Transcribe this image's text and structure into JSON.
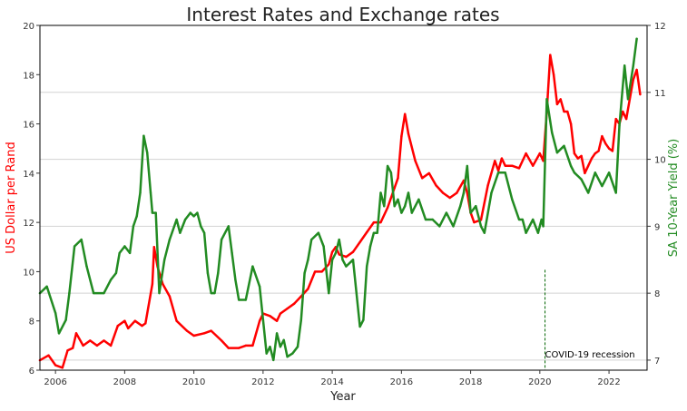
{
  "chart_data": {
    "type": "line",
    "title": "Interest Rates and Exchange rates",
    "xlabel": "Year",
    "ylabel_left": "US Dollar per Rand",
    "ylabel_right": "SA 10-Year Yield (%)",
    "xlim": [
      2005.55,
      2023.1
    ],
    "ylim_left": [
      6,
      20
    ],
    "ylim_right": [
      6.85,
      12
    ],
    "x_ticks": [
      2006,
      2008,
      2010,
      2012,
      2014,
      2016,
      2018,
      2020,
      2022
    ],
    "y_left_ticks": [
      6,
      8,
      10,
      12,
      14,
      16,
      18,
      20
    ],
    "y_right_ticks": [
      7,
      8,
      9,
      10,
      11,
      12
    ],
    "grid": "horizontal gridlines from right axis",
    "colors": {
      "exchange": "#ff0000",
      "yield": "#228b22",
      "annotation": "#006400",
      "grid": "#d3d3d3",
      "text": "#333333"
    },
    "annotation": {
      "label": "COVID-19 recession",
      "x": 2020.15,
      "y_right_top": 8.35
    },
    "series": [
      {
        "name": "US Dollar per Rand",
        "axis": "left",
        "x": [
          2005.55,
          2005.8,
          2006.0,
          2006.2,
          2006.35,
          2006.5,
          2006.6,
          2006.8,
          2007.0,
          2007.2,
          2007.4,
          2007.6,
          2007.8,
          2008.0,
          2008.1,
          2008.3,
          2008.5,
          2008.6,
          2008.8,
          2008.85,
          2008.95,
          2009.1,
          2009.3,
          2009.5,
          2009.8,
          2010.0,
          2010.3,
          2010.5,
          2010.8,
          2011.0,
          2011.3,
          2011.5,
          2011.7,
          2011.9,
          2012.0,
          2012.2,
          2012.4,
          2012.5,
          2012.7,
          2012.9,
          2013.1,
          2013.3,
          2013.5,
          2013.7,
          2013.9,
          2014.0,
          2014.1,
          2014.2,
          2014.4,
          2014.6,
          2014.8,
          2015.0,
          2015.2,
          2015.4,
          2015.6,
          2015.8,
          2015.9,
          2016.0,
          2016.1,
          2016.2,
          2016.4,
          2016.6,
          2016.8,
          2017.0,
          2017.2,
          2017.4,
          2017.6,
          2017.8,
          2017.9,
          2018.0,
          2018.1,
          2018.3,
          2018.5,
          2018.7,
          2018.8,
          2018.9,
          2019.0,
          2019.2,
          2019.4,
          2019.6,
          2019.8,
          2020.0,
          2020.1,
          2020.2,
          2020.3,
          2020.4,
          2020.5,
          2020.6,
          2020.7,
          2020.8,
          2020.9,
          2021.0,
          2021.1,
          2021.2,
          2021.3,
          2021.4,
          2021.5,
          2021.6,
          2021.7,
          2021.8,
          2021.9,
          2022.0,
          2022.1,
          2022.2,
          2022.3,
          2022.4,
          2022.5,
          2022.6,
          2022.7,
          2022.8,
          2022.9
        ],
        "values": [
          6.4,
          6.6,
          6.2,
          6.1,
          6.8,
          6.9,
          7.5,
          7.0,
          7.2,
          7.0,
          7.2,
          7.0,
          7.8,
          8.0,
          7.7,
          8.0,
          7.8,
          7.9,
          9.5,
          11.0,
          10.2,
          9.5,
          9.0,
          8.0,
          7.6,
          7.4,
          7.5,
          7.6,
          7.2,
          6.9,
          6.9,
          7.0,
          7.0,
          8.0,
          8.3,
          8.2,
          8.0,
          8.3,
          8.5,
          8.7,
          9.0,
          9.3,
          10.0,
          10.0,
          10.3,
          10.8,
          11.0,
          10.7,
          10.6,
          10.8,
          11.2,
          11.6,
          12.0,
          12.0,
          12.6,
          13.4,
          13.8,
          15.5,
          16.4,
          15.6,
          14.5,
          13.8,
          14.0,
          13.5,
          13.2,
          13.0,
          13.2,
          13.7,
          13.2,
          12.4,
          12.0,
          12.1,
          13.5,
          14.5,
          14.1,
          14.6,
          14.3,
          14.3,
          14.2,
          14.8,
          14.3,
          14.8,
          14.5,
          16.5,
          18.8,
          18.0,
          16.8,
          17.0,
          16.5,
          16.5,
          16.0,
          14.8,
          14.6,
          14.7,
          14.0,
          14.3,
          14.6,
          14.8,
          14.9,
          15.5,
          15.2,
          15.0,
          14.9,
          16.2,
          16.0,
          16.5,
          16.2,
          17.0,
          17.8,
          18.2,
          17.2
        ],
        "color": "#ff0000"
      },
      {
        "name": "SA 10-Year Yield (%)",
        "axis": "right",
        "x": [
          2005.55,
          2005.75,
          2006.0,
          2006.1,
          2006.3,
          2006.4,
          2006.55,
          2006.75,
          2006.9,
          2007.1,
          2007.4,
          2007.6,
          2007.75,
          2007.85,
          2008.0,
          2008.15,
          2008.25,
          2008.35,
          2008.45,
          2008.55,
          2008.65,
          2008.75,
          2008.8,
          2008.9,
          2009.0,
          2009.15,
          2009.3,
          2009.5,
          2009.6,
          2009.75,
          2009.9,
          2010.0,
          2010.1,
          2010.2,
          2010.3,
          2010.4,
          2010.5,
          2010.6,
          2010.7,
          2010.8,
          2011.0,
          2011.1,
          2011.2,
          2011.3,
          2011.5,
          2011.7,
          2011.9,
          2012.0,
          2012.1,
          2012.2,
          2012.3,
          2012.4,
          2012.5,
          2012.6,
          2012.7,
          2012.85,
          2013.0,
          2013.1,
          2013.2,
          2013.3,
          2013.4,
          2013.6,
          2013.75,
          2013.9,
          2014.0,
          2014.1,
          2014.2,
          2014.3,
          2014.4,
          2014.6,
          2014.8,
          2014.9,
          2015.0,
          2015.1,
          2015.2,
          2015.3,
          2015.4,
          2015.5,
          2015.6,
          2015.7,
          2015.8,
          2015.9,
          2016.0,
          2016.1,
          2016.2,
          2016.3,
          2016.5,
          2016.7,
          2016.9,
          2017.1,
          2017.3,
          2017.5,
          2017.7,
          2017.8,
          2017.9,
          2018.0,
          2018.15,
          2018.3,
          2018.4,
          2018.6,
          2018.8,
          2019.0,
          2019.2,
          2019.4,
          2019.5,
          2019.6,
          2019.8,
          2019.95,
          2020.05,
          2020.1,
          2020.2,
          2020.35,
          2020.5,
          2020.7,
          2020.9,
          2021.0,
          2021.2,
          2021.4,
          2021.6,
          2021.8,
          2022.0,
          2022.2,
          2022.3,
          2022.45,
          2022.55,
          2022.7,
          2022.8
        ],
        "values": [
          8.0,
          8.1,
          7.7,
          7.4,
          7.6,
          8.0,
          8.7,
          8.8,
          8.4,
          8.0,
          8.0,
          8.2,
          8.3,
          8.6,
          8.7,
          8.6,
          9.0,
          9.15,
          9.5,
          10.35,
          10.1,
          9.5,
          9.2,
          9.2,
          8.0,
          8.5,
          8.8,
          9.1,
          8.9,
          9.1,
          9.2,
          9.15,
          9.2,
          9.0,
          8.9,
          8.3,
          8.0,
          8.0,
          8.3,
          8.8,
          9.0,
          8.6,
          8.2,
          7.9,
          7.9,
          8.4,
          8.1,
          7.6,
          7.1,
          7.2,
          7.0,
          7.4,
          7.2,
          7.3,
          7.05,
          7.1,
          7.2,
          7.6,
          8.3,
          8.5,
          8.8,
          8.9,
          8.7,
          8.0,
          8.5,
          8.6,
          8.8,
          8.5,
          8.4,
          8.5,
          7.5,
          7.6,
          8.4,
          8.7,
          8.9,
          8.9,
          9.5,
          9.3,
          9.9,
          9.8,
          9.3,
          9.4,
          9.2,
          9.3,
          9.5,
          9.2,
          9.4,
          9.1,
          9.1,
          9.0,
          9.2,
          9.0,
          9.3,
          9.5,
          9.9,
          9.2,
          9.3,
          9.0,
          8.9,
          9.5,
          9.8,
          9.8,
          9.4,
          9.1,
          9.1,
          8.9,
          9.1,
          8.9,
          9.1,
          9.0,
          10.9,
          10.4,
          10.1,
          10.2,
          9.9,
          9.8,
          9.7,
          9.5,
          9.8,
          9.6,
          9.8,
          9.5,
          10.5,
          11.4,
          10.9,
          11.4,
          11.8
        ],
        "color": "#228b22"
      }
    ]
  }
}
